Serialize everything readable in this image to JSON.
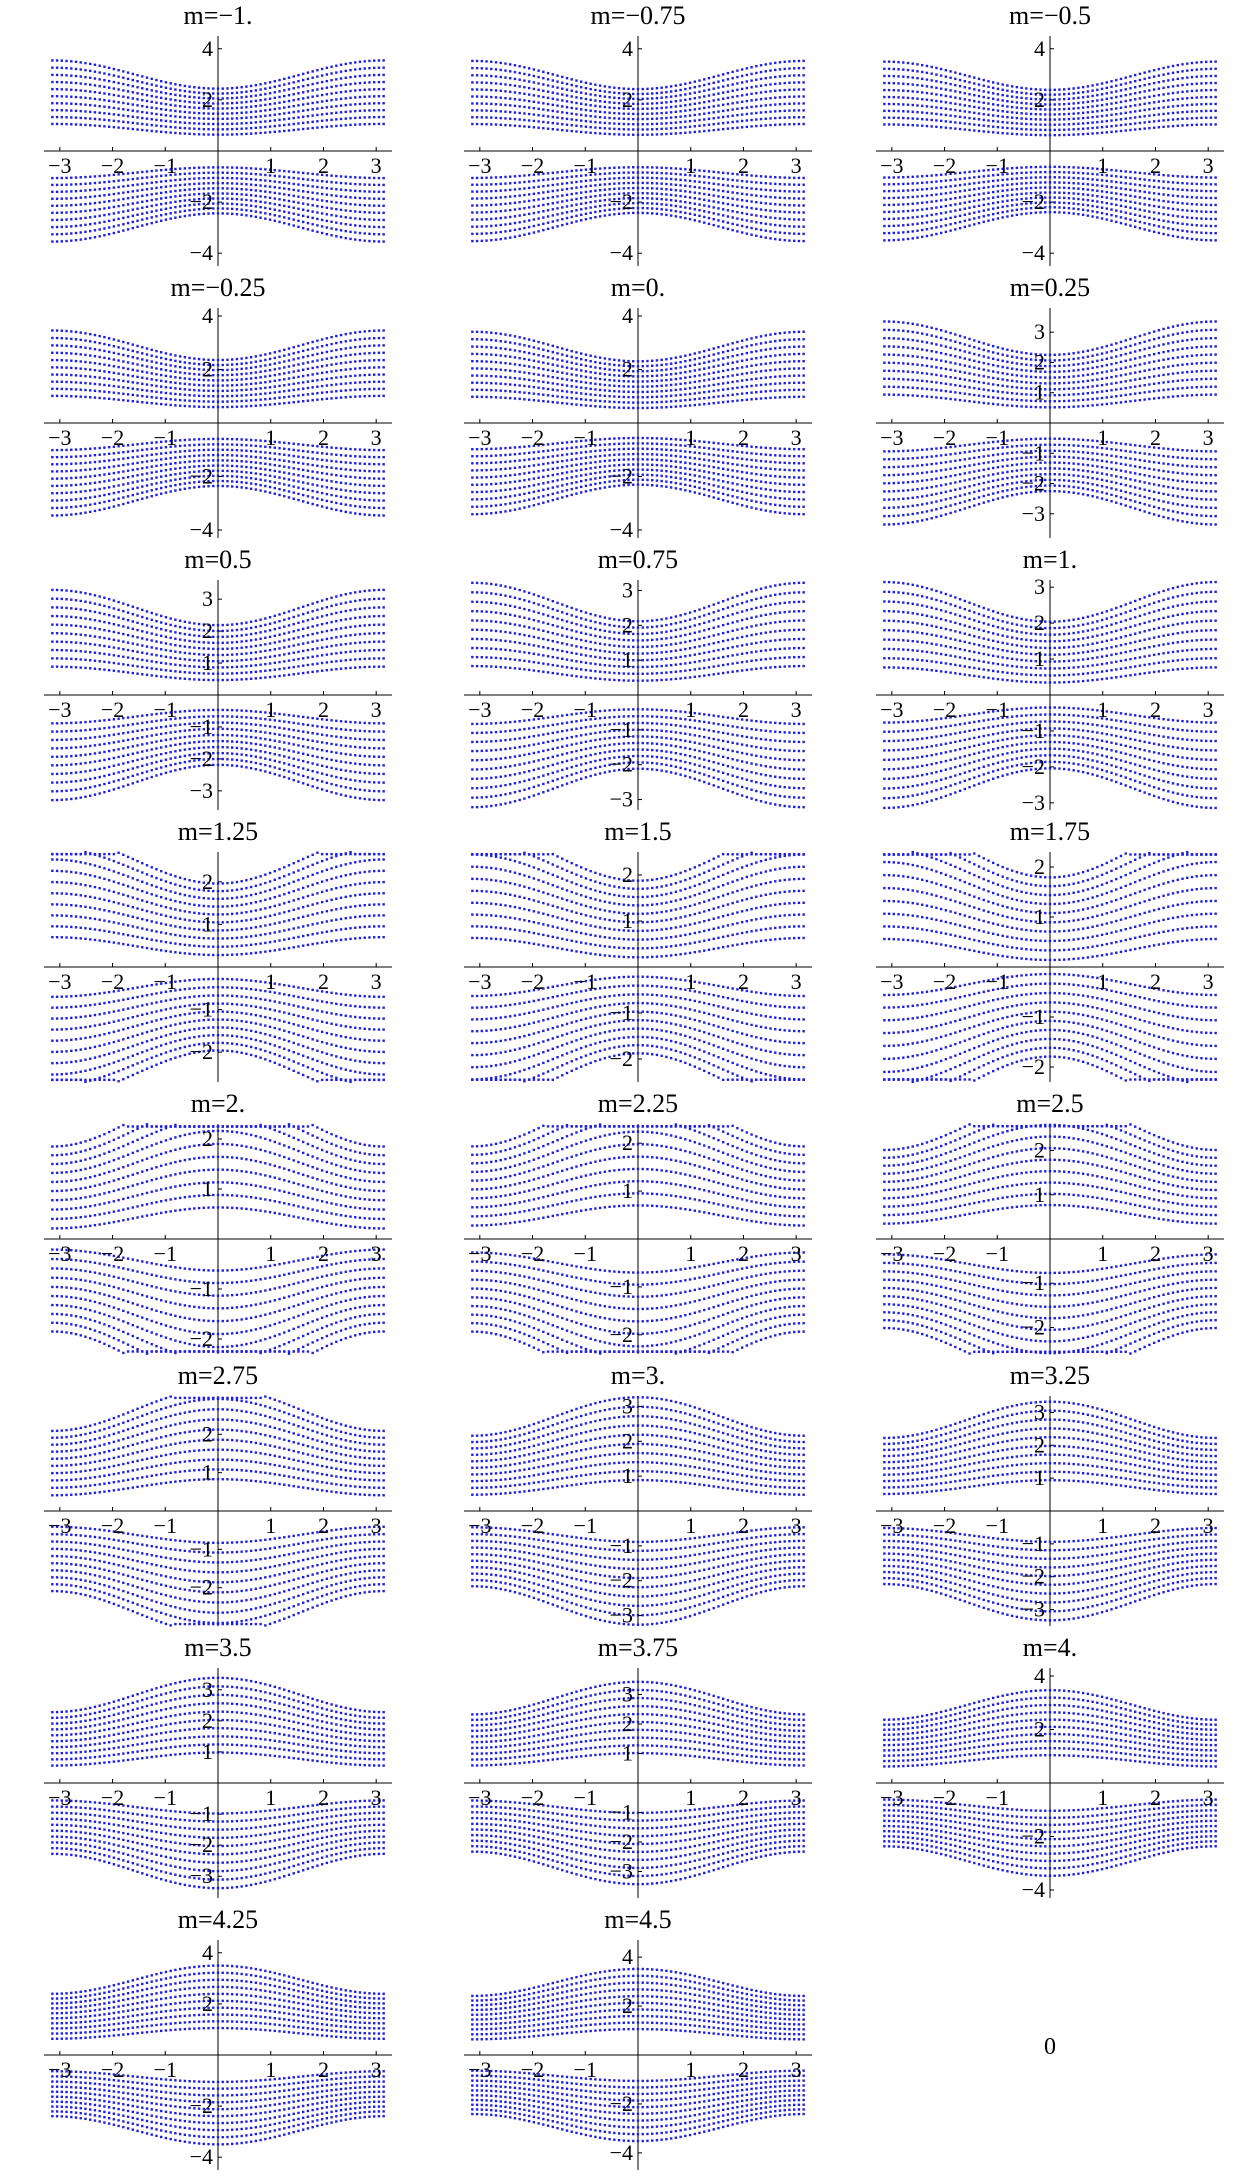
{
  "chart_data": [
    {
      "type": "scatter",
      "title": "m=−1.",
      "m": -1.0,
      "ylim": [
        -4.5,
        4.5
      ],
      "xlim": [
        -3.3,
        3.3
      ],
      "xticks": [
        "−3",
        "−2",
        "−1",
        "1",
        "2",
        "3"
      ],
      "yticks": [
        "4",
        "2",
        "−2",
        "−4"
      ],
      "grid": false
    },
    {
      "type": "scatter",
      "title": "m=−0.75",
      "m": -0.75,
      "ylim": [
        -4.5,
        4.5
      ],
      "xlim": [
        -3.3,
        3.3
      ],
      "xticks": [
        "−3",
        "−2",
        "−1",
        "1",
        "2",
        "3"
      ],
      "yticks": [
        "4",
        "2",
        "−2",
        "−4"
      ],
      "grid": false
    },
    {
      "type": "scatter",
      "title": "m=−0.5",
      "m": -0.5,
      "ylim": [
        -4.5,
        4.5
      ],
      "xlim": [
        -3.3,
        3.3
      ],
      "xticks": [
        "−3",
        "−2",
        "−1",
        "1",
        "2",
        "3"
      ],
      "yticks": [
        "4",
        "2",
        "−2",
        "−4"
      ],
      "grid": false
    },
    {
      "type": "scatter",
      "title": "m=−0.25",
      "m": -0.25,
      "ylim": [
        -4.3,
        4.3
      ],
      "xlim": [
        -3.3,
        3.3
      ],
      "xticks": [
        "−3",
        "−2",
        "−1",
        "1",
        "2",
        "3"
      ],
      "yticks": [
        "4",
        "2",
        "−2",
        "−4"
      ],
      "grid": false
    },
    {
      "type": "scatter",
      "title": "m=0.",
      "m": 0.0,
      "ylim": [
        -4.3,
        4.3
      ],
      "xlim": [
        -3.3,
        3.3
      ],
      "xticks": [
        "−3",
        "−2",
        "−1",
        "1",
        "2",
        "3"
      ],
      "yticks": [
        "4",
        "2",
        "−2",
        "−4"
      ],
      "grid": false
    },
    {
      "type": "scatter",
      "title": "m=0.25",
      "m": 0.25,
      "ylim": [
        -3.8,
        3.8
      ],
      "xlim": [
        -3.3,
        3.3
      ],
      "xticks": [
        "−3",
        "−2",
        "−1",
        "1",
        "2",
        "3"
      ],
      "yticks": [
        "3",
        "2",
        "1",
        "−1",
        "−2",
        "−3"
      ],
      "grid": false
    },
    {
      "type": "scatter",
      "title": "m=0.5",
      "m": 0.5,
      "ylim": [
        -3.6,
        3.6
      ],
      "xlim": [
        -3.3,
        3.3
      ],
      "xticks": [
        "−3",
        "−2",
        "−1",
        "1",
        "2",
        "3"
      ],
      "yticks": [
        "3",
        "2",
        "1",
        "−1",
        "−2",
        "−3"
      ],
      "grid": false
    },
    {
      "type": "scatter",
      "title": "m=0.75",
      "m": 0.75,
      "ylim": [
        -3.3,
        3.3
      ],
      "xlim": [
        -3.3,
        3.3
      ],
      "xticks": [
        "−3",
        "−2",
        "−1",
        "1",
        "2",
        "3"
      ],
      "yticks": [
        "3",
        "2",
        "1",
        "−1",
        "−2",
        "−3"
      ],
      "grid": false
    },
    {
      "type": "scatter",
      "title": "m=1.",
      "m": 1.0,
      "ylim": [
        -3.2,
        3.2
      ],
      "xlim": [
        -3.3,
        3.3
      ],
      "xticks": [
        "−3",
        "−2",
        "−1",
        "1",
        "2",
        "3"
      ],
      "yticks": [
        "3",
        "2",
        "1",
        "−1",
        "−2",
        "−3"
      ],
      "grid": false
    },
    {
      "type": "scatter",
      "title": "m=1.25",
      "m": 1.25,
      "ylim": [
        -2.7,
        2.7
      ],
      "xlim": [
        -3.3,
        3.3
      ],
      "xticks": [
        "−3",
        "−2",
        "−1",
        "1",
        "2",
        "3"
      ],
      "yticks": [
        "2",
        "1",
        "−1",
        "−2"
      ],
      "grid": false
    },
    {
      "type": "scatter",
      "title": "m=1.5",
      "m": 1.5,
      "ylim": [
        -2.5,
        2.5
      ],
      "xlim": [
        -3.3,
        3.3
      ],
      "xticks": [
        "−3",
        "−2",
        "−1",
        "1",
        "2",
        "3"
      ],
      "yticks": [
        "2",
        "1",
        "−1",
        "−2"
      ],
      "grid": false
    },
    {
      "type": "scatter",
      "title": "m=1.75",
      "m": 1.75,
      "ylim": [
        -2.3,
        2.3
      ],
      "xlim": [
        -3.3,
        3.3
      ],
      "xticks": [
        "−3",
        "−2",
        "−1",
        "1",
        "2",
        "3"
      ],
      "yticks": [
        "2",
        "1",
        "−1",
        "−2"
      ],
      "grid": false
    },
    {
      "type": "scatter",
      "title": "m=2.",
      "m": 2.0,
      "ylim": [
        -2.3,
        2.3
      ],
      "xlim": [
        -3.3,
        3.3
      ],
      "xticks": [
        "−3",
        "−2",
        "−1",
        "1",
        "2",
        "3"
      ],
      "yticks": [
        "2",
        "1",
        "−1",
        "−2"
      ],
      "grid": false
    },
    {
      "type": "scatter",
      "title": "m=2.25",
      "m": 2.25,
      "ylim": [
        -2.4,
        2.4
      ],
      "xlim": [
        -3.3,
        3.3
      ],
      "xticks": [
        "−3",
        "−2",
        "−1",
        "1",
        "2",
        "3"
      ],
      "yticks": [
        "2",
        "1",
        "−1",
        "−2"
      ],
      "grid": false
    },
    {
      "type": "scatter",
      "title": "m=2.5",
      "m": 2.5,
      "ylim": [
        -2.6,
        2.6
      ],
      "xlim": [
        -3.3,
        3.3
      ],
      "xticks": [
        "−3",
        "−2",
        "−1",
        "1",
        "2",
        "3"
      ],
      "yticks": [
        "2",
        "1",
        "−1",
        "−2"
      ],
      "grid": false
    },
    {
      "type": "scatter",
      "title": "m=2.75",
      "m": 2.75,
      "ylim": [
        -3.0,
        3.0
      ],
      "xlim": [
        -3.3,
        3.3
      ],
      "xticks": [
        "−3",
        "−2",
        "−1",
        "1",
        "2",
        "3"
      ],
      "yticks": [
        "2",
        "1",
        "−1",
        "−2"
      ],
      "grid": false
    },
    {
      "type": "scatter",
      "title": "m=3.",
      "m": 3.0,
      "ylim": [
        -3.3,
        3.3
      ],
      "xlim": [
        -3.3,
        3.3
      ],
      "xticks": [
        "−3",
        "−2",
        "−1",
        "1",
        "2",
        "3"
      ],
      "yticks": [
        "3",
        "2",
        "1",
        "−1",
        "−2",
        "−3"
      ],
      "grid": false
    },
    {
      "type": "scatter",
      "title": "m=3.25",
      "m": 3.25,
      "ylim": [
        -3.5,
        3.5
      ],
      "xlim": [
        -3.3,
        3.3
      ],
      "xticks": [
        "−3",
        "−2",
        "−1",
        "1",
        "2",
        "3"
      ],
      "yticks": [
        "3",
        "2",
        "1",
        "−1",
        "−2",
        "−3"
      ],
      "grid": false
    },
    {
      "type": "scatter",
      "title": "m=3.5",
      "m": 3.5,
      "ylim": [
        -3.7,
        3.7
      ],
      "xlim": [
        -3.3,
        3.3
      ],
      "xticks": [
        "−3",
        "−2",
        "−1",
        "1",
        "2",
        "3"
      ],
      "yticks": [
        "3",
        "2",
        "1",
        "−1",
        "−2",
        "−3"
      ],
      "grid": false
    },
    {
      "type": "scatter",
      "title": "m=3.75",
      "m": 3.75,
      "ylim": [
        -3.9,
        3.9
      ],
      "xlim": [
        -3.3,
        3.3
      ],
      "xticks": [
        "−3",
        "−2",
        "−1",
        "1",
        "2",
        "3"
      ],
      "yticks": [
        "3",
        "2",
        "1",
        "−1",
        "−2",
        "−3"
      ],
      "grid": false
    },
    {
      "type": "scatter",
      "title": "m=4.",
      "m": 4.0,
      "ylim": [
        -4.3,
        4.3
      ],
      "xlim": [
        -3.3,
        3.3
      ],
      "xticks": [
        "−3",
        "−2",
        "−1",
        "1",
        "2",
        "3"
      ],
      "yticks": [
        "4",
        "2",
        "−2",
        "−4"
      ],
      "grid": false
    },
    {
      "type": "scatter",
      "title": "m=4.25",
      "m": 4.25,
      "ylim": [
        -4.5,
        4.5
      ],
      "xlim": [
        -3.3,
        3.3
      ],
      "xticks": [
        "−3",
        "−2",
        "−1",
        "1",
        "2",
        "3"
      ],
      "yticks": [
        "4",
        "2",
        "−2",
        "−4"
      ],
      "grid": false
    },
    {
      "type": "scatter",
      "title": "m=4.5",
      "m": 4.5,
      "ylim": [
        -4.7,
        4.7
      ],
      "xlim": [
        -3.3,
        3.3
      ],
      "xticks": [
        "−3",
        "−2",
        "−1",
        "1",
        "2",
        "3"
      ],
      "yticks": [
        "4",
        "2",
        "−2",
        "−4"
      ],
      "grid": false
    }
  ],
  "empty_cell_label": "0",
  "colors": {
    "points": "#1f1fe0",
    "axes": "#000000",
    "text": "#000000"
  }
}
